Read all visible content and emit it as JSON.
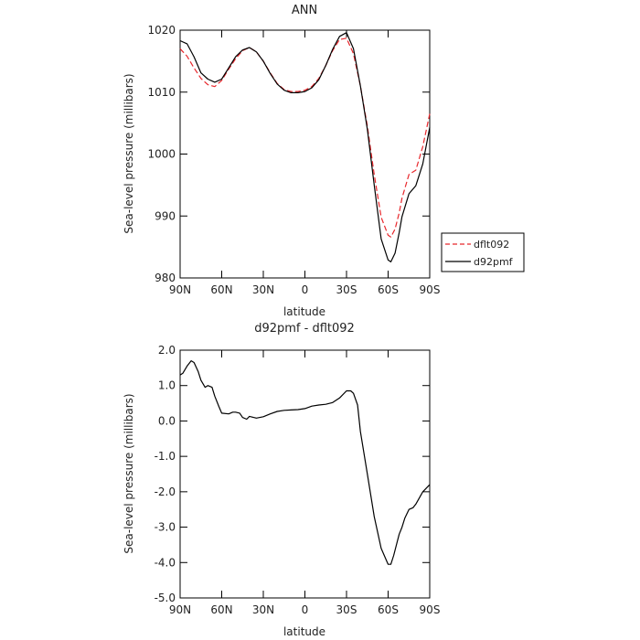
{
  "chart_data": [
    {
      "type": "line",
      "title": "ANN",
      "xlabel": "latitude",
      "ylabel": "Sea-level pressure (millibars)",
      "xlim": [
        90,
        -90
      ],
      "ylim": [
        980,
        1020
      ],
      "x_ticks": [
        90,
        60,
        30,
        0,
        -30,
        -60,
        -90
      ],
      "x_tick_labels": [
        "90N",
        "60N",
        "30N",
        "0",
        "30S",
        "60S",
        "90S"
      ],
      "y_ticks": [
        980,
        990,
        1000,
        1010,
        1020
      ],
      "y_tick_labels": [
        "980",
        "990",
        "1000",
        "1010",
        "1020"
      ],
      "legend": "outside right",
      "series": [
        {
          "name": "dflt092",
          "color": "#e8262b",
          "dash": "dashed",
          "x": [
            90,
            85,
            80,
            75,
            70,
            65,
            60,
            55,
            50,
            45,
            40,
            35,
            30,
            25,
            20,
            15,
            10,
            5,
            0,
            -5,
            -10,
            -15,
            -20,
            -25,
            -30,
            -35,
            -40,
            -45,
            -50,
            -55,
            -60,
            -62,
            -65,
            -68,
            -70,
            -75,
            -80,
            -85,
            -90
          ],
          "values": [
            1017.0,
            1015.8,
            1013.9,
            1012.2,
            1011.2,
            1010.9,
            1011.9,
            1013.7,
            1015.4,
            1016.7,
            1017.2,
            1016.5,
            1015.0,
            1013.1,
            1011.4,
            1010.4,
            1010.1,
            1010.1,
            1010.3,
            1010.9,
            1012.2,
            1014.3,
            1016.7,
            1018.5,
            1018.7,
            1016.2,
            1011.0,
            1004.5,
            996.7,
            989.8,
            986.9,
            986.6,
            987.9,
            990.5,
            992.9,
            996.7,
            997.4,
            1001.2,
            1006.5
          ]
        },
        {
          "name": "d92pmf",
          "color": "#000000",
          "dash": "solid",
          "x": [
            90,
            85,
            80,
            75,
            70,
            65,
            60,
            55,
            50,
            45,
            40,
            35,
            30,
            25,
            20,
            15,
            10,
            5,
            0,
            -5,
            -10,
            -15,
            -20,
            -25,
            -30,
            -35,
            -40,
            -45,
            -50,
            -55,
            -60,
            -62,
            -65,
            -68,
            -70,
            -75,
            -80,
            -85,
            -90
          ],
          "values": [
            1018.3,
            1017.8,
            1015.7,
            1013.1,
            1012.1,
            1011.6,
            1012.1,
            1013.9,
            1015.7,
            1016.8,
            1017.2,
            1016.5,
            1015.0,
            1013.0,
            1011.3,
            1010.3,
            1009.9,
            1009.9,
            1010.1,
            1010.7,
            1012.0,
            1014.3,
            1016.9,
            1019.0,
            1019.6,
            1017.0,
            1011.0,
            1004.0,
            995.0,
            986.3,
            982.9,
            982.6,
            984.0,
            987.3,
            989.9,
            993.6,
            994.9,
            998.4,
            1004.3
          ]
        }
      ]
    },
    {
      "type": "line",
      "title": "d92pmf - dflt092",
      "xlabel": "latitude",
      "ylabel": "Sea-level pressure (millibars)",
      "xlim": [
        90,
        -90
      ],
      "ylim": [
        -5.0,
        2.0
      ],
      "x_ticks": [
        90,
        60,
        30,
        0,
        -30,
        -60,
        -90
      ],
      "x_tick_labels": [
        "90N",
        "60N",
        "30N",
        "0",
        "30S",
        "60S",
        "90S"
      ],
      "y_ticks": [
        2.0,
        1.0,
        0.0,
        -1.0,
        -2.0,
        -3.0,
        -4.0,
        -5.0
      ],
      "y_tick_labels": [
        "2.0",
        "1.0",
        "0.0",
        "-1.0",
        "-2.0",
        "-3.0",
        "-4.0",
        "-5.0"
      ],
      "series": [
        {
          "color": "#000000",
          "dash": "solid",
          "x": [
            90,
            88,
            85,
            82,
            80,
            77,
            75,
            72,
            70,
            67,
            65,
            62,
            60,
            55,
            52,
            50,
            47,
            45,
            42,
            40,
            37,
            35,
            30,
            25,
            20,
            15,
            10,
            5,
            0,
            -5,
            -10,
            -15,
            -20,
            -25,
            -30,
            -33,
            -35,
            -38,
            -40,
            -45,
            -50,
            -55,
            -60,
            -62,
            -64,
            -66,
            -68,
            -70,
            -72,
            -75,
            -78,
            -80,
            -85,
            -90
          ],
          "values": [
            1.3,
            1.35,
            1.55,
            1.7,
            1.65,
            1.4,
            1.15,
            0.95,
            1.0,
            0.95,
            0.7,
            0.4,
            0.22,
            0.2,
            0.25,
            0.25,
            0.22,
            0.1,
            0.05,
            0.13,
            0.1,
            0.08,
            0.12,
            0.2,
            0.27,
            0.3,
            0.31,
            0.32,
            0.35,
            0.42,
            0.45,
            0.47,
            0.52,
            0.65,
            0.85,
            0.85,
            0.78,
            0.45,
            -0.3,
            -1.5,
            -2.7,
            -3.6,
            -4.05,
            -4.05,
            -3.8,
            -3.5,
            -3.2,
            -3.0,
            -2.75,
            -2.5,
            -2.45,
            -2.35,
            -2.0,
            -1.8
          ]
        }
      ]
    }
  ],
  "legend": {
    "items": [
      {
        "label": "dflt092",
        "color": "#e8262b",
        "dash": "dashed"
      },
      {
        "label": "d92pmf",
        "color": "#000000",
        "dash": "solid"
      }
    ]
  }
}
